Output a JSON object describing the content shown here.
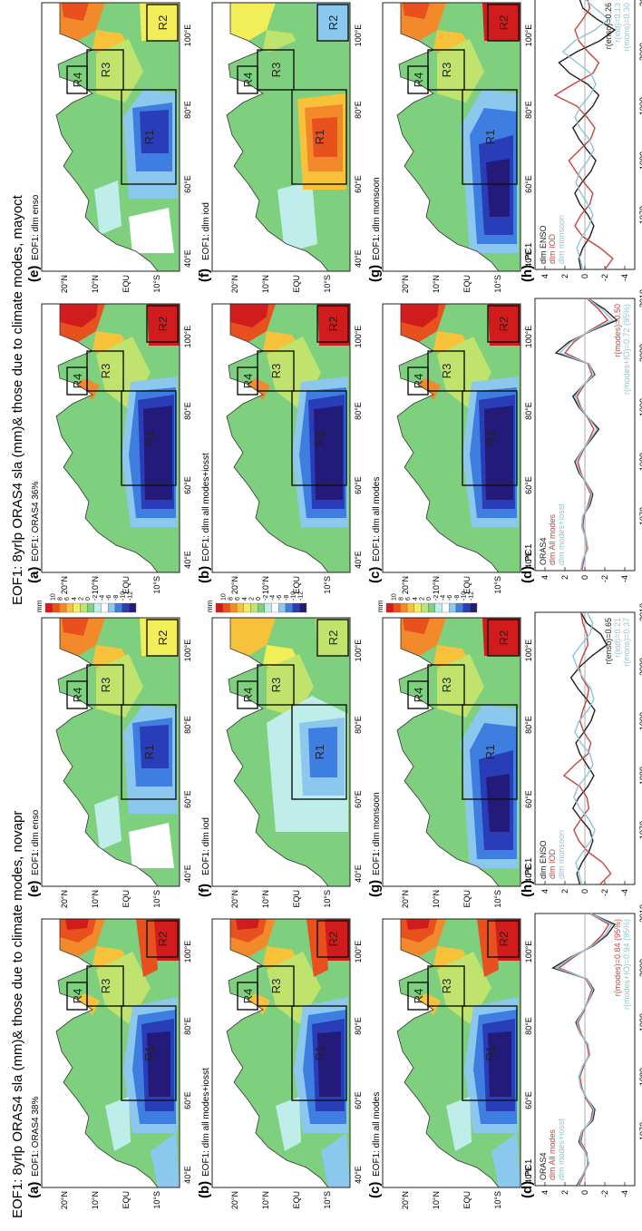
{
  "figures": [
    {
      "title": "EOF1: 8yrlp ORAS4 sla (mm)& those due to climate modes, novapr",
      "map_panels": [
        {
          "letter": "(a)",
          "label": "EOF1: ORAS4 38%",
          "pattern": "oras4"
        },
        {
          "letter": "(b)",
          "label": "EOF1: dlm all modes+iosst",
          "pattern": "oras4"
        },
        {
          "letter": "(c)",
          "label": "EOF1: dlm all modes",
          "pattern": "oras4"
        },
        {
          "letter": "(e)",
          "label": "EOF1: dlm enso",
          "pattern": "enso"
        },
        {
          "letter": "(f)",
          "label": "EOF1: dlm iod",
          "pattern": "iod_weak"
        },
        {
          "letter": "(g)",
          "label": "EOF1: dlm monsoon",
          "pattern": "monsoon"
        }
      ],
      "pc_panels": [
        {
          "letter": "(d)",
          "label": "PC1",
          "legend": [
            "ORAS4",
            "dlm All modes",
            "dlm modes+iosst"
          ],
          "stats": [
            "r(modes)=0.84 (95%)",
            "r(modes+IO)=0.94 (95%)"
          ],
          "chart_data": {
            "type": "line",
            "x": [
              1960,
              1962,
              1964,
              1966,
              1968,
              1970,
              1972,
              1974,
              1976,
              1978,
              1980,
              1982,
              1984,
              1986,
              1988,
              1990,
              1992,
              1994,
              1996,
              1998,
              2000,
              2002,
              2004,
              2006,
              2008,
              2010
            ],
            "series": [
              {
                "name": "ORAS4",
                "color": "#222222",
                "values": [
                  0.8,
                  0.2,
                  -0.4,
                  -0.1,
                  0.6,
                  0.3,
                  -0.8,
                  -1.0,
                  -0.2,
                  0.4,
                  0.6,
                  0.2,
                  -0.5,
                  -0.3,
                  0.5,
                  0.9,
                  0.2,
                  -0.4,
                  -0.9,
                  -0.2,
                  3.2,
                  1.4,
                  -0.8,
                  -2.2,
                  -3.0,
                  -0.6
                ]
              },
              {
                "name": "dlm All modes",
                "color": "#c8453e",
                "values": [
                  0.6,
                  0.1,
                  -0.3,
                  -0.2,
                  0.4,
                  0.2,
                  -0.6,
                  -0.8,
                  -0.1,
                  0.3,
                  0.5,
                  0.1,
                  -0.4,
                  -0.2,
                  0.4,
                  0.7,
                  0.1,
                  -0.3,
                  -0.7,
                  -0.1,
                  2.6,
                  1.1,
                  -0.6,
                  -1.7,
                  -2.4,
                  -0.5
                ]
              },
              {
                "name": "dlm modes+iosst",
                "color": "#8fc3dc",
                "values": [
                  0.7,
                  0.2,
                  -0.4,
                  -0.1,
                  0.5,
                  0.3,
                  -0.7,
                  -0.9,
                  -0.2,
                  0.4,
                  0.6,
                  0.2,
                  -0.5,
                  -0.3,
                  0.5,
                  0.8,
                  0.2,
                  -0.4,
                  -0.8,
                  -0.2,
                  2.9,
                  1.3,
                  -0.7,
                  -2.0,
                  -2.7,
                  -0.6
                ]
              }
            ],
            "xlim": [
              1960,
              2010
            ],
            "ylim": [
              -5,
              5
            ],
            "xticks": [
              1970,
              1980,
              1990,
              2000,
              2010
            ],
            "yticks": [
              4,
              2,
              0,
              -2,
              -4
            ]
          }
        },
        {
          "letter": "(h)",
          "label": "PC1",
          "legend": [
            "dlm ENSO",
            "dlm IOD",
            "dlm monsoon"
          ],
          "stats": [
            "r(enso)=0.65",
            "r(iod)=0.21",
            "r(mons)=0.37"
          ],
          "chart_data": {
            "type": "line",
            "x": [
              1960,
              1962,
              1964,
              1966,
              1968,
              1970,
              1972,
              1974,
              1976,
              1978,
              1980,
              1982,
              1984,
              1986,
              1988,
              1990,
              1992,
              1994,
              1996,
              1998,
              2000,
              2002,
              2004,
              2006,
              2008,
              2010
            ],
            "series": [
              {
                "name": "dlm ENSO",
                "color": "#222222",
                "values": [
                  0.5,
                  0.8,
                  0.3,
                  -0.4,
                  -0.8,
                  -0.5,
                  0.4,
                  1.2,
                  0.6,
                  -0.3,
                  -0.9,
                  -0.2,
                  0.5,
                  0.9,
                  0.1,
                  -0.6,
                  -1.0,
                  -0.2,
                  0.7,
                  1.4,
                  0.5,
                  -0.7,
                  -2.2,
                  -1.6,
                  -0.2,
                  0.4
                ]
              },
              {
                "name": "dlm IOD",
                "color": "#c8453e",
                "values": [
                  -1.5,
                  -2.6,
                  -1.8,
                  -0.3,
                  0.6,
                  1.1,
                  0.4,
                  -0.4,
                  -0.2,
                  0.5,
                  2.1,
                  1.0,
                  -0.3,
                  -0.6,
                  0.1,
                  0.5,
                  0.2,
                  -0.2,
                  -0.4,
                  0.3,
                  0.6,
                  0.2,
                  -0.3,
                  -0.2,
                  0.2,
                  0.4
                ]
              },
              {
                "name": "dlm monsoon",
                "color": "#8fc3dc",
                "values": [
                  0.3,
                  0.6,
                  0.9,
                  0.2,
                  -0.6,
                  -1.0,
                  -0.4,
                  0.5,
                  1.1,
                  0.7,
                  -0.2,
                  -0.8,
                  -0.5,
                  0.4,
                  1.0,
                  0.6,
                  -0.3,
                  -0.9,
                  -0.6,
                  0.2,
                  0.8,
                  1.2,
                  0.4,
                  -0.5,
                  -0.8,
                  -0.2
                ]
              }
            ],
            "xlim": [
              1960,
              2010
            ],
            "ylim": [
              -5,
              5
            ],
            "xticks": [
              1970,
              1980,
              1990,
              2000,
              2010
            ],
            "yticks": [
              4,
              2,
              0,
              -2,
              -4
            ]
          }
        }
      ]
    },
    {
      "title": "EOF1: 8yrlp ORAS4 sla (mm)& those due to climate modes, mayoct",
      "map_panels": [
        {
          "letter": "(a)",
          "label": "EOF1: ORAS4 36%",
          "pattern": "oras4_strong"
        },
        {
          "letter": "(b)",
          "label": "EOF1: dlm all modes+iosst",
          "pattern": "oras4_strong"
        },
        {
          "letter": "(c)",
          "label": "EOF1: dlm all modes",
          "pattern": "oras4_strong"
        },
        {
          "letter": "(e)",
          "label": "EOF1: dlm enso",
          "pattern": "enso"
        },
        {
          "letter": "(f)",
          "label": "EOF1: dlm iod",
          "pattern": "iod_pos"
        },
        {
          "letter": "(g)",
          "label": "EOF1: dlm monsoon",
          "pattern": "monsoon"
        }
      ],
      "pc_panels": [
        {
          "letter": "(d)",
          "label": "PC1",
          "legend": [
            "ORAS4",
            "dlm All modes",
            "dlm modes+iosst"
          ],
          "stats": [
            "r(modes)=0.50",
            "r(modes+IO)=0.72 (95%)"
          ],
          "chart_data": {
            "type": "line",
            "x": [
              1960,
              1962,
              1964,
              1966,
              1968,
              1970,
              1972,
              1974,
              1976,
              1978,
              1980,
              1982,
              1984,
              1986,
              1988,
              1990,
              1992,
              1994,
              1996,
              1998,
              2000,
              2002,
              2004,
              2006,
              2008,
              2010
            ],
            "series": [
              {
                "name": "ORAS4",
                "color": "#222222",
                "values": [
                  0.4,
                  0.2,
                  -0.3,
                  -0.1,
                  0.3,
                  0.2,
                  -0.5,
                  -0.8,
                  -0.2,
                  0.6,
                  1.0,
                  0.3,
                  -0.6,
                  -1.4,
                  -0.4,
                  0.6,
                  1.2,
                  0.2,
                  -1.0,
                  -0.4,
                  2.9,
                  1.6,
                  -0.6,
                  -3.2,
                  -2.0,
                  -0.3
                ]
              },
              {
                "name": "dlm All modes",
                "color": "#c8453e",
                "values": [
                  0.3,
                  0.1,
                  -0.2,
                  -0.1,
                  0.2,
                  0.1,
                  -0.3,
                  -0.6,
                  -0.1,
                  0.4,
                  0.7,
                  0.2,
                  -0.4,
                  -0.9,
                  -0.3,
                  0.4,
                  0.8,
                  0.1,
                  -0.7,
                  -0.3,
                  2.0,
                  1.1,
                  -0.4,
                  -2.3,
                  -1.4,
                  -0.2
                ]
              },
              {
                "name": "dlm modes+iosst",
                "color": "#8fc3dc",
                "values": [
                  0.4,
                  0.2,
                  -0.3,
                  -0.1,
                  0.3,
                  0.2,
                  -0.4,
                  -0.7,
                  -0.2,
                  0.5,
                  0.9,
                  0.3,
                  -0.5,
                  -1.2,
                  -0.4,
                  0.5,
                  1.0,
                  0.2,
                  -0.9,
                  -0.4,
                  2.5,
                  1.4,
                  -0.5,
                  -2.8,
                  -1.7,
                  -0.3
                ]
              }
            ],
            "xlim": [
              1960,
              2010
            ],
            "ylim": [
              -5,
              5
            ],
            "xticks": [
              1970,
              1980,
              1990,
              2000,
              2010
            ],
            "yticks": [
              4,
              2,
              0,
              -2,
              -4
            ]
          }
        },
        {
          "letter": "(h)",
          "label": "PC1",
          "legend": [
            "dlm ENSO",
            "dlm IOD",
            "dlm monsoon"
          ],
          "stats": [
            "r(enso)=0.26",
            "r(iod)=0.13",
            "r(mons)=0.30"
          ],
          "chart_data": {
            "type": "line",
            "x": [
              1960,
              1962,
              1964,
              1966,
              1968,
              1970,
              1972,
              1974,
              1976,
              1978,
              1980,
              1982,
              1984,
              1986,
              1988,
              1990,
              1992,
              1994,
              1996,
              1998,
              2000,
              2002,
              2004,
              2006,
              2008,
              2010
            ],
            "series": [
              {
                "name": "dlm ENSO",
                "color": "#222222",
                "values": [
                  0.4,
                  0.6,
                  0.2,
                  -0.5,
                  -0.9,
                  -0.3,
                  0.5,
                  1.0,
                  0.3,
                  -0.6,
                  -1.1,
                  -0.2,
                  0.6,
                  1.2,
                  0.2,
                  -0.8,
                  -1.4,
                  -0.3,
                  1.5,
                  2.6,
                  0.8,
                  -1.5,
                  -3.0,
                  -1.2,
                  0.2,
                  0.6
                ]
              },
              {
                "name": "dlm IOD",
                "color": "#c8453e",
                "values": [
                  -2.0,
                  -2.8,
                  -1.5,
                  0.2,
                  1.0,
                  0.4,
                  -0.5,
                  -0.8,
                  0.1,
                  0.9,
                  1.6,
                  0.5,
                  -0.6,
                  -1.0,
                  -0.2,
                  0.8,
                  3.0,
                  1.2,
                  -0.8,
                  -1.4,
                  -0.3,
                  0.6,
                  1.0,
                  0.2,
                  -0.5,
                  -0.2
                ]
              },
              {
                "name": "dlm monsoon",
                "color": "#8fc3dc",
                "values": [
                  0.2,
                  0.5,
                  0.8,
                  0.3,
                  -0.4,
                  -0.8,
                  -0.3,
                  0.4,
                  0.9,
                  0.5,
                  -0.3,
                  -0.9,
                  -0.4,
                  0.5,
                  1.0,
                  0.4,
                  -0.5,
                  -1.1,
                  -0.6,
                  0.8,
                  2.2,
                  1.0,
                  -1.0,
                  -2.4,
                  -1.0,
                  0.2
                ]
              }
            ],
            "xlim": [
              1960,
              2010
            ],
            "ylim": [
              -5,
              5
            ],
            "xticks": [
              1970,
              1980,
              1990,
              2000,
              2010
            ],
            "yticks": [
              4,
              2,
              0,
              -2,
              -4
            ]
          }
        }
      ]
    }
  ],
  "map_axes": {
    "lon_labels": [
      "40°E",
      "60°E",
      "80°E",
      "100°E"
    ],
    "lat_labels": [
      "20°N",
      "10°N",
      "EQU",
      "10°S"
    ],
    "box_labels": [
      "R1",
      "R2",
      "R3",
      "R4"
    ]
  },
  "colorbar": {
    "unit": "mm",
    "labels": [
      "10",
      "8",
      "6",
      "4",
      "2",
      "0",
      "-2",
      "-4",
      "-6",
      "-8",
      "-10",
      "-12"
    ],
    "colors": [
      "#d01c1c",
      "#e8501e",
      "#f28a2c",
      "#f7c23a",
      "#f2ee5a",
      "#bfe36c",
      "#7fd07e",
      "#bfeeea",
      "#ffffff",
      "#8cc8ee",
      "#3e7ee0",
      "#2a3db8",
      "#241a7a"
    ]
  }
}
